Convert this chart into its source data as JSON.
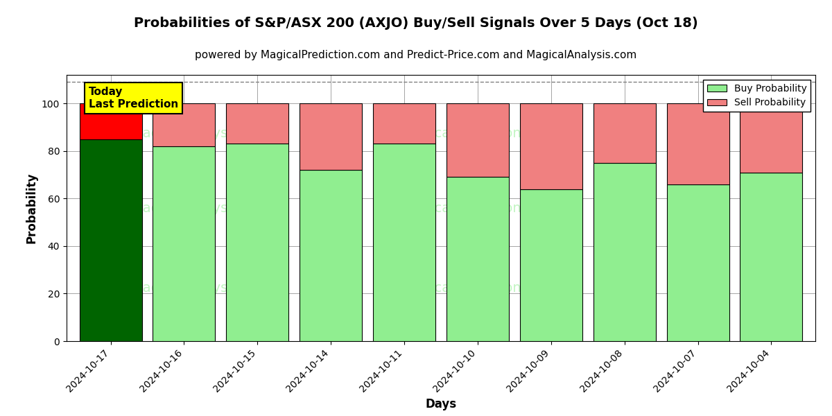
{
  "title": "Probabilities of S&P/ASX 200 (AXJO) Buy/Sell Signals Over 5 Days (Oct 18)",
  "subtitle": "powered by MagicalPrediction.com and Predict-Price.com and MagicalAnalysis.com",
  "xlabel": "Days",
  "ylabel": "Probability",
  "dates": [
    "2024-10-17",
    "2024-10-16",
    "2024-10-15",
    "2024-10-14",
    "2024-10-11",
    "2024-10-10",
    "2024-10-09",
    "2024-10-08",
    "2024-10-07",
    "2024-10-04"
  ],
  "buy_values": [
    85,
    82,
    83,
    72,
    83,
    69,
    64,
    75,
    66,
    71
  ],
  "sell_values": [
    15,
    18,
    17,
    28,
    17,
    31,
    36,
    25,
    34,
    29
  ],
  "today_bar_buy_color": "#006400",
  "today_bar_sell_color": "#FF0000",
  "other_bar_buy_color": "#90EE90",
  "other_bar_sell_color": "#F08080",
  "bar_edge_color": "#000000",
  "ylim": [
    0,
    112
  ],
  "yticks": [
    0,
    20,
    40,
    60,
    80,
    100
  ],
  "dashed_line_y": 109,
  "annotation_text": "Today\nLast Prediction",
  "annotation_bg": "#FFFF00",
  "legend_buy_label": "Buy Probability",
  "legend_sell_label": "Sell Probability",
  "title_fontsize": 14,
  "subtitle_fontsize": 11,
  "axis_label_fontsize": 12,
  "tick_fontsize": 10,
  "bar_width": 0.85
}
